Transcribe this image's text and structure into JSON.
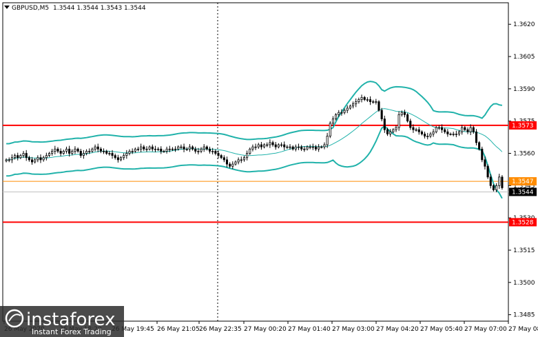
{
  "header": {
    "symbol": "GBPUSD,M5",
    "ohlc": "1.3544 1.3544 1.3543 1.3544"
  },
  "watermark": {
    "brand": "instaforex",
    "tagline": "Instant Forex Trading"
  },
  "colors": {
    "candle": "#000000",
    "bollinger": "#20b2aa",
    "level": "#ff0000",
    "bid_line": "#ff8c00",
    "watermark_bg": "#2b2b2b"
  },
  "chart_data": {
    "type": "candlestick",
    "symbol": "GBPUSD",
    "timeframe": "M5",
    "ylim": [
      1.3482,
      1.363
    ],
    "y_ticks": [
      "1.3620",
      "1.3605",
      "1.3590",
      "1.3575",
      "1.3560",
      "1.3545",
      "1.3530",
      "1.3515",
      "1.3500",
      "1.3485"
    ],
    "x_ticks": [
      "26 May 2020",
      "26 May 18:20",
      "26 May 19:45",
      "26 May 21:05",
      "26 May 22:35",
      "27 May 00:20",
      "27 May 01:40",
      "27 May 03:00",
      "27 May 04:20",
      "27 May 05:40",
      "27 May 07:00",
      "27 May 08:20"
    ],
    "session_separator": "27 May 00:00",
    "horizontal_levels": [
      {
        "label": "1.3573",
        "value": 1.3573,
        "color": "#ff0000"
      },
      {
        "label": "1.3528",
        "value": 1.3528,
        "color": "#ff0000"
      }
    ],
    "bid_line": {
      "label": "1.3547",
      "value": 1.3547,
      "color": "#ff8c00"
    },
    "current_price": {
      "label": "1.3544",
      "value": 1.3544
    },
    "close": [
      1.3557,
      1.3557,
      1.3558,
      1.3559,
      1.3558,
      1.3559,
      1.356,
      1.3558,
      1.3557,
      1.3556,
      1.3557,
      1.3558,
      1.3557,
      1.3558,
      1.3559,
      1.356,
      1.3561,
      1.3562,
      1.3561,
      1.356,
      1.3561,
      1.3562,
      1.356,
      1.3561,
      1.3562,
      1.3561,
      1.3559,
      1.356,
      1.3561,
      1.3561,
      1.3562,
      1.3563,
      1.3562,
      1.3561,
      1.3561,
      1.356,
      1.356,
      1.3559,
      1.3558,
      1.3557,
      1.3558,
      1.3559,
      1.356,
      1.3561,
      1.3561,
      1.3562,
      1.3562,
      1.3563,
      1.3562,
      1.3562,
      1.3563,
      1.3562,
      1.3562,
      1.3562,
      1.3561,
      1.3561,
      1.3562,
      1.3562,
      1.3562,
      1.3562,
      1.3563,
      1.3563,
      1.3562,
      1.3562,
      1.3563,
      1.3562,
      1.3561,
      1.3561,
      1.3562,
      1.3563,
      1.3562,
      1.3561,
      1.3561,
      1.356,
      1.3559,
      1.3558,
      1.3557,
      1.3555,
      1.3554,
      1.3555,
      1.3556,
      1.3557,
      1.3557,
      1.3558,
      1.356,
      1.3562,
      1.3563,
      1.3563,
      1.3564,
      1.3563,
      1.3564,
      1.3564,
      1.3565,
      1.3564,
      1.3563,
      1.3564,
      1.3564,
      1.3563,
      1.3563,
      1.3563,
      1.3562,
      1.3563,
      1.3563,
      1.3562,
      1.3562,
      1.3563,
      1.3563,
      1.3563,
      1.3562,
      1.3563,
      1.3563,
      1.3564,
      1.3568,
      1.3574,
      1.3576,
      1.3578,
      1.3579,
      1.3579,
      1.358,
      1.3581,
      1.3582,
      1.3583,
      1.3584,
      1.3585,
      1.3586,
      1.3585,
      1.3585,
      1.3584,
      1.3584,
      1.3584,
      1.358,
      1.3576,
      1.3571,
      1.3569,
      1.357,
      1.3571,
      1.3572,
      1.3578,
      1.3579,
      1.3578,
      1.3575,
      1.3572,
      1.3571,
      1.3571,
      1.357,
      1.3569,
      1.3568,
      1.3568,
      1.3569,
      1.357,
      1.3572,
      1.3572,
      1.3571,
      1.357,
      1.3569,
      1.3569,
      1.3569,
      1.3569,
      1.357,
      1.3572,
      1.3571,
      1.357,
      1.3572,
      1.357,
      1.3565,
      1.3562,
      1.3557,
      1.3554,
      1.3549,
      1.3545,
      1.3543,
      1.3545,
      1.3549,
      1.3544
    ]
  }
}
